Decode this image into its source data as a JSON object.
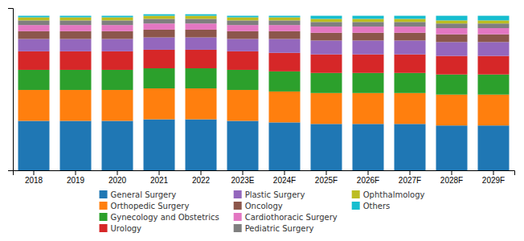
{
  "chart_data": {
    "type": "bar",
    "stacked": true,
    "categories": [
      "2018",
      "2019",
      "2020",
      "2021",
      "2022",
      "2023E",
      "2024F",
      "2025F",
      "2026F",
      "2027F",
      "2028F",
      "2029F"
    ],
    "series": [
      {
        "name": "General Surgery",
        "values": [
          32,
          32,
          32,
          33,
          33,
          32,
          31,
          30,
          30,
          30,
          29,
          29
        ]
      },
      {
        "name": "Orthopedic Surgery",
        "values": [
          20,
          20,
          20,
          20,
          20,
          20,
          20,
          20,
          20,
          20,
          20,
          20
        ]
      },
      {
        "name": "Gynecology and Obstetrics",
        "values": [
          13,
          13,
          13,
          13,
          13,
          13,
          13,
          13,
          13,
          13,
          13,
          13
        ]
      },
      {
        "name": "Urology",
        "values": [
          12,
          12,
          12,
          12,
          12,
          12,
          12,
          12,
          12,
          12,
          12,
          12
        ]
      },
      {
        "name": "Plastic Surgery",
        "values": [
          8,
          8,
          8,
          8,
          8,
          8,
          9,
          9,
          9,
          9,
          9,
          9
        ]
      },
      {
        "name": "Oncology",
        "values": [
          5,
          5,
          5,
          5,
          5,
          5,
          5,
          5,
          5,
          5,
          5,
          5
        ]
      },
      {
        "name": "Cardiothoracic Surgery",
        "values": [
          4,
          4,
          4,
          4,
          4,
          4,
          4,
          4,
          4,
          4,
          4,
          4
        ]
      },
      {
        "name": "Pediatric Surgery",
        "values": [
          3,
          3,
          3,
          3,
          3,
          3,
          3,
          3,
          3,
          3,
          3,
          3
        ]
      },
      {
        "name": "Ophthalmology",
        "values": [
          2,
          2,
          2,
          2,
          2,
          2,
          2,
          2,
          2,
          2,
          2,
          2
        ]
      },
      {
        "name": "Others",
        "values": [
          1,
          1,
          1,
          1,
          1,
          1,
          1,
          2,
          2,
          2,
          3,
          3
        ]
      }
    ],
    "ylim": [
      0,
      105
    ],
    "grid": false,
    "legend": "bottom",
    "tick_labels": "x"
  }
}
